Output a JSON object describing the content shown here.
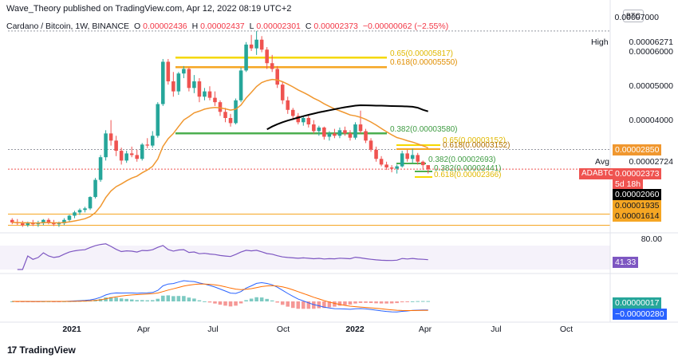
{
  "publisher": "Wave_Theory published on TradingView.com, Apr 12, 2022 08:19 UTC+2",
  "legend": {
    "pair": "Cardano / Bitcoin, 1W, BINANCE",
    "o_label": "O",
    "o_value": "0.00002436",
    "h_label": "H",
    "h_value": "0.00002437",
    "l_label": "L",
    "l_value": "0.00002301",
    "c_label": "C",
    "c_value": "0.00002373",
    "change": "−0.00000062 (−2.55%)"
  },
  "currency_badge": "BTC",
  "colors": {
    "up": "#26a69a",
    "down": "#ef5350",
    "ema": "#f0972f",
    "sma": "#000000",
    "fib_yellow": "#f5d800",
    "fib_orange": "#f5a623",
    "fib_green": "#4caf50",
    "rsi": "#7e57c2",
    "macd": "#2962ff",
    "signal": "#ff6d00"
  },
  "price_axis": {
    "ticks": [
      "0.00007000",
      "0.00006000",
      "0.00005000",
      "0.00004000"
    ],
    "high_label": "High",
    "high_value": "0.00006271",
    "avg_label": "Avg",
    "avg_value": "0.00002724",
    "tags": {
      "ema": "0.00002850",
      "pair_label": "ADABTC",
      "last": "0.00002373",
      "countdown": "5d 18h",
      "sma": "0.00002060",
      "s1": "0.00001935",
      "s2": "0.00001614"
    }
  },
  "fib_labels": {
    "f065_top": "0.65(0.00005817)",
    "f0618_top": "0.618(0.00005550)",
    "f0382_mid": "0.382(0.00003580)",
    "f065_mid": "0.65(0.00003152)",
    "f0618_mid": "0.618(0.00003152)",
    "f0382_low": "0.382(0.00002693)",
    "f0382_low2": "0.382(0.00002441)",
    "f0618_low": "0.618(0.00002366)"
  },
  "rsi": {
    "axis_tick": "80.00",
    "value": "41.33"
  },
  "macd": {
    "value1": "0.00000017",
    "value2": "−0.00000280"
  },
  "x_axis": [
    "2021",
    "Apr",
    "Jul",
    "Oct",
    "2022",
    "Apr",
    "Jul",
    "Oct"
  ],
  "logo_text": "TradingView",
  "chart_data": {
    "type": "candlestick",
    "title": "Cardano / Bitcoin, 1W, BINANCE",
    "ylabel": "BTC",
    "ylim": [
      1.55e-05,
      7.05e-05
    ],
    "candles": [
      [
        1.66e-05,
        1.68e-05,
        1.61e-05,
        1.63e-05
      ],
      [
        1.63e-05,
        1.67e-05,
        1.6e-05,
        1.62e-05
      ],
      [
        1.62e-05,
        1.65e-05,
        1.58e-05,
        1.6e-05
      ],
      [
        1.6e-05,
        1.64e-05,
        1.58e-05,
        1.63e-05
      ],
      [
        1.63e-05,
        1.66e-05,
        1.59e-05,
        1.61e-05
      ],
      [
        1.61e-05,
        1.65e-05,
        1.58e-05,
        1.62e-05
      ],
      [
        1.62e-05,
        1.67e-05,
        1.6e-05,
        1.66e-05
      ],
      [
        1.66e-05,
        1.68e-05,
        1.61e-05,
        1.63e-05
      ],
      [
        1.63e-05,
        1.66e-05,
        1.59e-05,
        1.61e-05
      ],
      [
        1.61e-05,
        1.64e-05,
        1.58e-05,
        1.62e-05
      ],
      [
        1.62e-05,
        1.68e-05,
        1.6e-05,
        1.66e-05
      ],
      [
        1.66e-05,
        1.72e-05,
        1.64e-05,
        1.71e-05
      ],
      [
        1.71e-05,
        1.77e-05,
        1.68e-05,
        1.75e-05
      ],
      [
        1.75e-05,
        1.8e-05,
        1.72e-05,
        1.78e-05
      ],
      [
        1.78e-05,
        1.82e-05,
        1.75e-05,
        1.8e-05
      ],
      [
        1.8e-05,
        1.96e-05,
        1.78e-05,
        1.95e-05
      ],
      [
        1.95e-05,
        2.23e-05,
        1.93e-05,
        2.2e-05
      ],
      [
        2.2e-05,
        2.62e-05,
        2.17e-05,
        2.58e-05
      ],
      [
        2.58e-05,
        3.12e-05,
        2.52e-05,
        3.05e-05
      ],
      [
        3.05e-05,
        3.35e-05,
        2.8e-05,
        2.9e-05
      ],
      [
        2.9e-05,
        3e-05,
        2.6e-05,
        2.7e-05
      ],
      [
        2.7e-05,
        2.76e-05,
        2.45e-05,
        2.52e-05
      ],
      [
        2.52e-05,
        2.7e-05,
        2.48e-05,
        2.65e-05
      ],
      [
        2.65e-05,
        2.78e-05,
        2.58e-05,
        2.62e-05
      ],
      [
        2.62e-05,
        2.72e-05,
        2.5e-05,
        2.55e-05
      ],
      [
        2.55e-05,
        2.85e-05,
        2.52e-05,
        2.82e-05
      ],
      [
        2.82e-05,
        2.95e-05,
        2.75e-05,
        2.8e-05
      ],
      [
        2.8e-05,
        3.1e-05,
        2.76e-05,
        3e-05
      ],
      [
        3e-05,
        3.8e-05,
        2.96e-05,
        3.75e-05
      ],
      [
        3.75e-05,
        5.15e-05,
        3.7e-05,
        5.05e-05
      ],
      [
        5.05e-05,
        5.15e-05,
        4.3e-05,
        4.4e-05
      ],
      [
        4.4e-05,
        4.7e-05,
        3.95e-05,
        4.1e-05
      ],
      [
        4.1e-05,
        4.7e-05,
        4e-05,
        4.65e-05
      ],
      [
        4.65e-05,
        4.9e-05,
        4.5e-05,
        4.8e-05
      ],
      [
        4.8e-05,
        4.85e-05,
        4.1e-05,
        4.2e-05
      ],
      [
        4.2e-05,
        4.6e-05,
        4.05e-05,
        4.4e-05
      ],
      [
        4.4e-05,
        4.5e-05,
        3.8e-05,
        3.95e-05
      ],
      [
        3.95e-05,
        4.2e-05,
        3.85e-05,
        4.1e-05
      ],
      [
        4.1e-05,
        4.25e-05,
        3.85e-05,
        3.92e-05
      ],
      [
        3.92e-05,
        4.1e-05,
        3.7e-05,
        3.8e-05
      ],
      [
        3.8e-05,
        3.85e-05,
        3.45e-05,
        3.55e-05
      ],
      [
        3.55e-05,
        3.65e-05,
        3.3e-05,
        3.4e-05
      ],
      [
        3.4e-05,
        3.5e-05,
        3.2e-05,
        3.28e-05
      ],
      [
        3.28e-05,
        3.9e-05,
        3.25e-05,
        3.85e-05
      ],
      [
        3.85e-05,
        4.85e-05,
        3.8e-05,
        4.75e-05
      ],
      [
        4.75e-05,
        5.8e-05,
        4.7e-05,
        5.7e-05
      ],
      [
        5.7e-05,
        6.1e-05,
        5.45e-05,
        5.55e-05
      ],
      [
        5.55e-05,
        6.27e-05,
        5.3e-05,
        5.9e-05
      ],
      [
        5.9e-05,
        6.05e-05,
        5.4e-05,
        5.5e-05
      ],
      [
        5.5e-05,
        5.6e-05,
        4.8e-05,
        5e-05
      ],
      [
        5e-05,
        5.3e-05,
        4.7e-05,
        4.8e-05
      ],
      [
        4.8e-05,
        4.9e-05,
        4.2e-05,
        4.3e-05
      ],
      [
        4.3e-05,
        4.4e-05,
        3.75e-05,
        3.85e-05
      ],
      [
        3.85e-05,
        3.95e-05,
        3.5e-05,
        3.6e-05
      ],
      [
        3.6e-05,
        3.65e-05,
        3.35e-05,
        3.45e-05
      ],
      [
        3.45e-05,
        3.52e-05,
        3.25e-05,
        3.3e-05
      ],
      [
        3.3e-05,
        3.45e-05,
        3.22e-05,
        3.4e-05
      ],
      [
        3.4e-05,
        3.48e-05,
        3.18e-05,
        3.25e-05
      ],
      [
        3.25e-05,
        3.35e-05,
        3.05e-05,
        3.1e-05
      ],
      [
        3.1e-05,
        3.22e-05,
        3e-05,
        3.18e-05
      ],
      [
        3.18e-05,
        3.2e-05,
        2.92e-05,
        2.98e-05
      ],
      [
        2.98e-05,
        3.1e-05,
        2.9e-05,
        3.05e-05
      ],
      [
        3.05e-05,
        3.15e-05,
        2.95e-05,
        3e-05
      ],
      [
        3e-05,
        3.18e-05,
        2.95e-05,
        3.12e-05
      ],
      [
        3.12e-05,
        3.2e-05,
        3e-05,
        3.05e-05
      ],
      [
        3.05e-05,
        3.12e-05,
        2.9e-05,
        2.96e-05
      ],
      [
        2.96e-05,
        3.3e-05,
        2.92e-05,
        3.25e-05
      ],
      [
        3.25e-05,
        3.58e-05,
        3.05e-05,
        3.1e-05
      ],
      [
        3.1e-05,
        3.15e-05,
        2.85e-05,
        2.9e-05
      ],
      [
        2.9e-05,
        2.95e-05,
        2.68e-05,
        2.72e-05
      ],
      [
        2.72e-05,
        2.78e-05,
        2.5e-05,
        2.55e-05
      ],
      [
        2.55e-05,
        2.6e-05,
        2.42e-05,
        2.45e-05
      ],
      [
        2.45e-05,
        2.5e-05,
        2.36e-05,
        2.4e-05
      ],
      [
        2.4e-05,
        2.44e-05,
        2.32e-05,
        2.38e-05
      ],
      [
        2.38e-05,
        2.45e-05,
        2.3e-05,
        2.42e-05
      ],
      [
        2.42e-05,
        2.7e-05,
        2.4e-05,
        2.65e-05
      ],
      [
        2.65e-05,
        2.72e-05,
        2.5e-05,
        2.55e-05
      ],
      [
        2.55e-05,
        2.74e-05,
        2.48e-05,
        2.62e-05
      ],
      [
        2.62e-05,
        2.66e-05,
        2.45e-05,
        2.5e-05
      ],
      [
        2.5e-05,
        2.52e-05,
        2.36e-05,
        2.44e-05
      ],
      [
        2.44e-05,
        2.44e-05,
        2.3e-05,
        2.37e-05
      ]
    ]
  }
}
